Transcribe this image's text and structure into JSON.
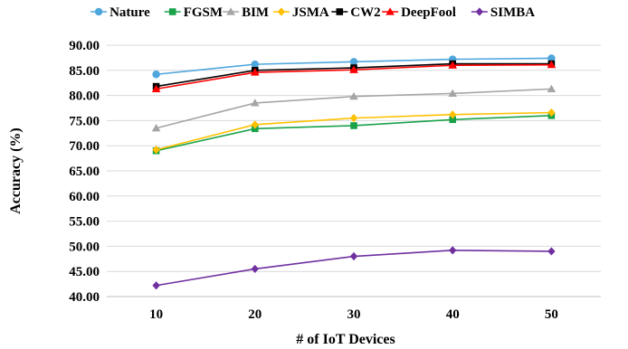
{
  "chart_data": {
    "type": "line",
    "title": "",
    "xlabel": "# of IoT Devices",
    "ylabel": "Accuracy (%)",
    "categories": [
      "10",
      "20",
      "30",
      "40",
      "50"
    ],
    "ylim": [
      40,
      90
    ],
    "yticks": [
      "40.00",
      "45.00",
      "50.00",
      "55.00",
      "60.00",
      "65.00",
      "70.00",
      "75.00",
      "80.00",
      "85.00",
      "90.00"
    ],
    "grid": "horizontal",
    "legend_position": "top",
    "series": [
      {
        "name": "Nature",
        "color": "#4ea6dc",
        "marker": "circle",
        "values": [
          84.2,
          86.2,
          86.7,
          87.2,
          87.4
        ]
      },
      {
        "name": "FGSM",
        "color": "#1aa24a",
        "marker": "square",
        "values": [
          69.0,
          73.4,
          74.0,
          75.2,
          76.0
        ]
      },
      {
        "name": "BIM",
        "color": "#a5a5a5",
        "marker": "triangle",
        "values": [
          73.5,
          78.5,
          79.8,
          80.4,
          81.3
        ]
      },
      {
        "name": "JSMA",
        "color": "#ffc000",
        "marker": "diamond",
        "values": [
          69.2,
          74.2,
          75.5,
          76.2,
          76.6
        ]
      },
      {
        "name": "CW2",
        "color": "#000000",
        "marker": "square",
        "values": [
          81.8,
          85.0,
          85.5,
          86.3,
          86.3
        ]
      },
      {
        "name": "DeepFool",
        "color": "#ff0000",
        "marker": "triangle",
        "values": [
          81.3,
          84.6,
          85.1,
          86.0,
          86.1
        ]
      },
      {
        "name": "SIMBA",
        "color": "#7030a0",
        "marker": "diamond",
        "values": [
          42.2,
          45.5,
          48.0,
          49.2,
          49.0
        ]
      }
    ]
  }
}
